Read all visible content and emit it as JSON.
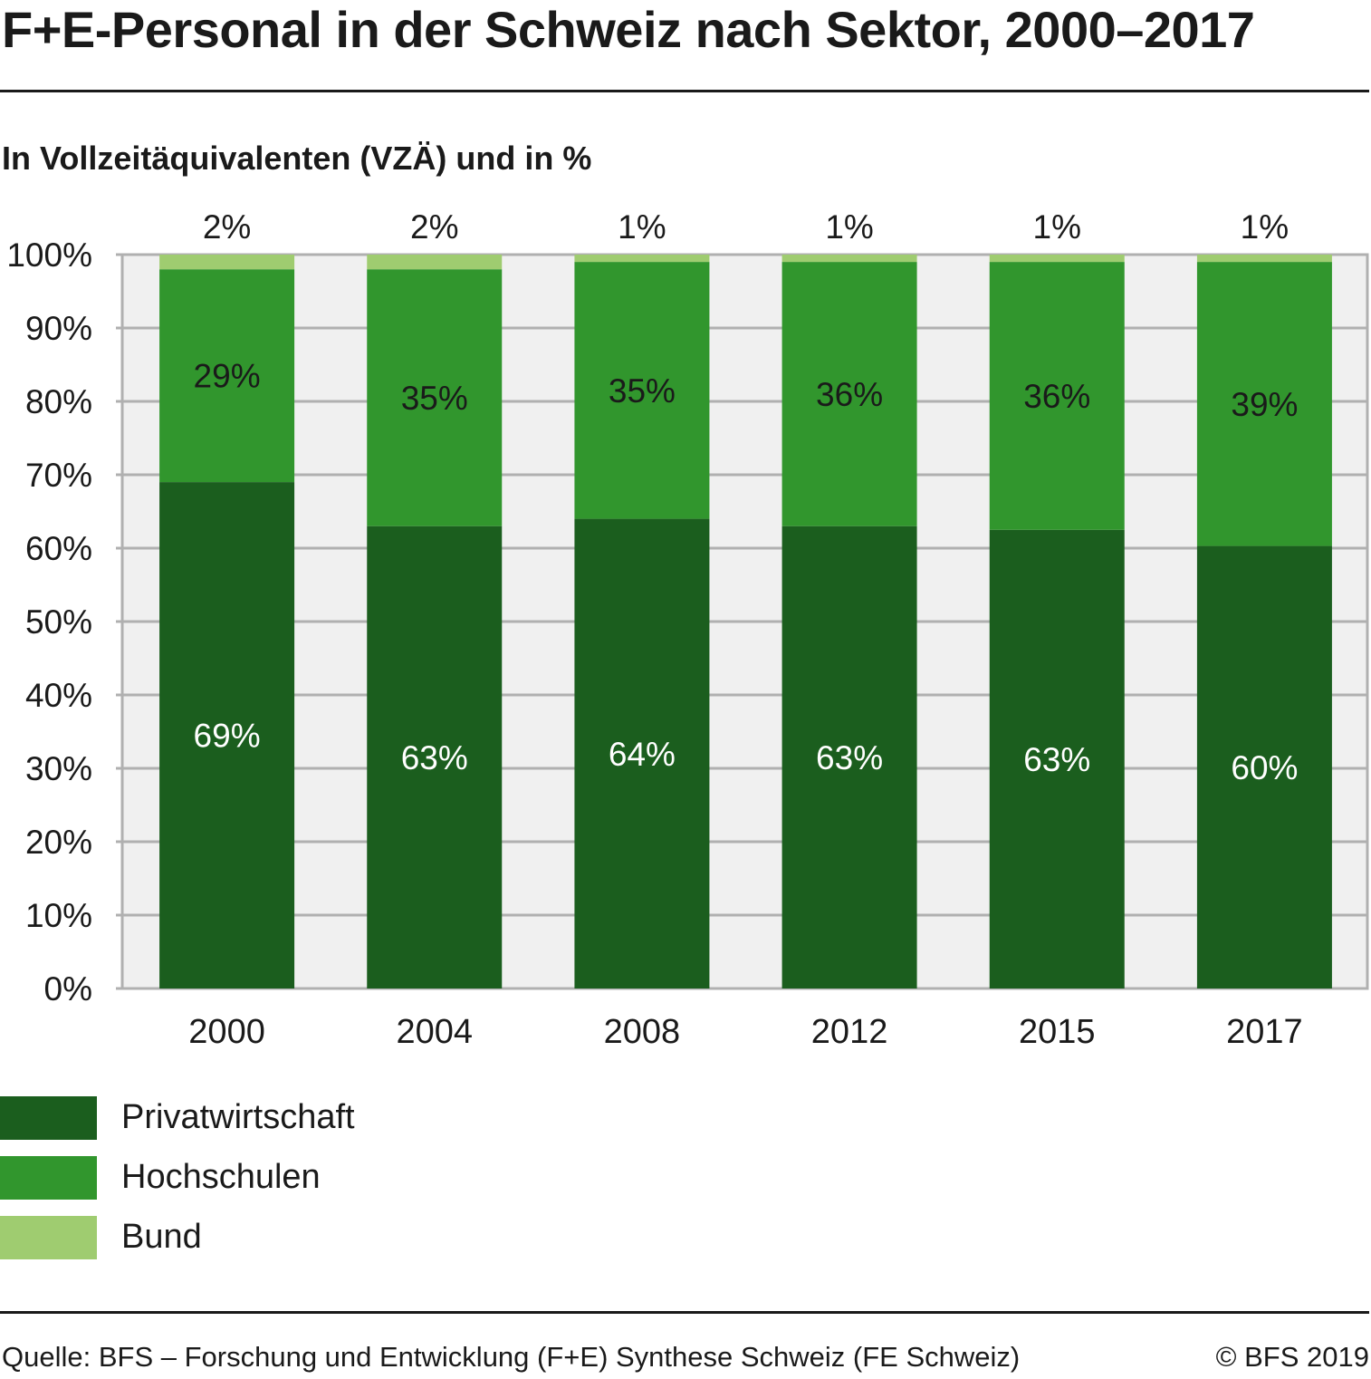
{
  "header": {
    "title": "F+E-Personal in der Schweiz nach Sektor, 2000–2017",
    "subtitle": "In Vollzeitäquivalenten (VZÄ) und in %"
  },
  "chart_data": {
    "type": "bar",
    "stacked": true,
    "title": "F+E-Personal in der Schweiz nach Sektor, 2000–2017",
    "subtitle": "In Vollzeitäquivalenten (VZÄ) und in %",
    "xlabel": "",
    "ylabel": "",
    "ylim": [
      0,
      100
    ],
    "yticks": [
      "0%",
      "10%",
      "20%",
      "30%",
      "40%",
      "50%",
      "60%",
      "70%",
      "80%",
      "90%",
      "100%"
    ],
    "grid": true,
    "legend_position": "bottom-left",
    "categories": [
      "2000",
      "2004",
      "2008",
      "2012",
      "2015",
      "2017"
    ],
    "series": [
      {
        "name": "Privatwirtschaft",
        "color": "#1b5e1e",
        "values": [
          69,
          63,
          64,
          63,
          62.5,
          60.3
        ],
        "labels": [
          "69%",
          "63%",
          "64%",
          "63%",
          "63%",
          "60%"
        ]
      },
      {
        "name": "Hochschulen",
        "color": "#31962d",
        "values": [
          29,
          35,
          35,
          36,
          36.5,
          38.7
        ],
        "labels": [
          "29%",
          "35%",
          "35%",
          "36%",
          "36%",
          "39%"
        ]
      },
      {
        "name": "Bund",
        "color": "#9fcc70",
        "values": [
          2,
          2,
          1,
          1,
          1,
          1
        ],
        "labels": [
          "2%",
          "2%",
          "1%",
          "1%",
          "1%",
          "1%"
        ]
      }
    ]
  },
  "footer": {
    "source": "Quelle: BFS – Forschung und Entwicklung (F+E) Synthese Schweiz (FE Schweiz)",
    "copyright": "© BFS 2019"
  }
}
